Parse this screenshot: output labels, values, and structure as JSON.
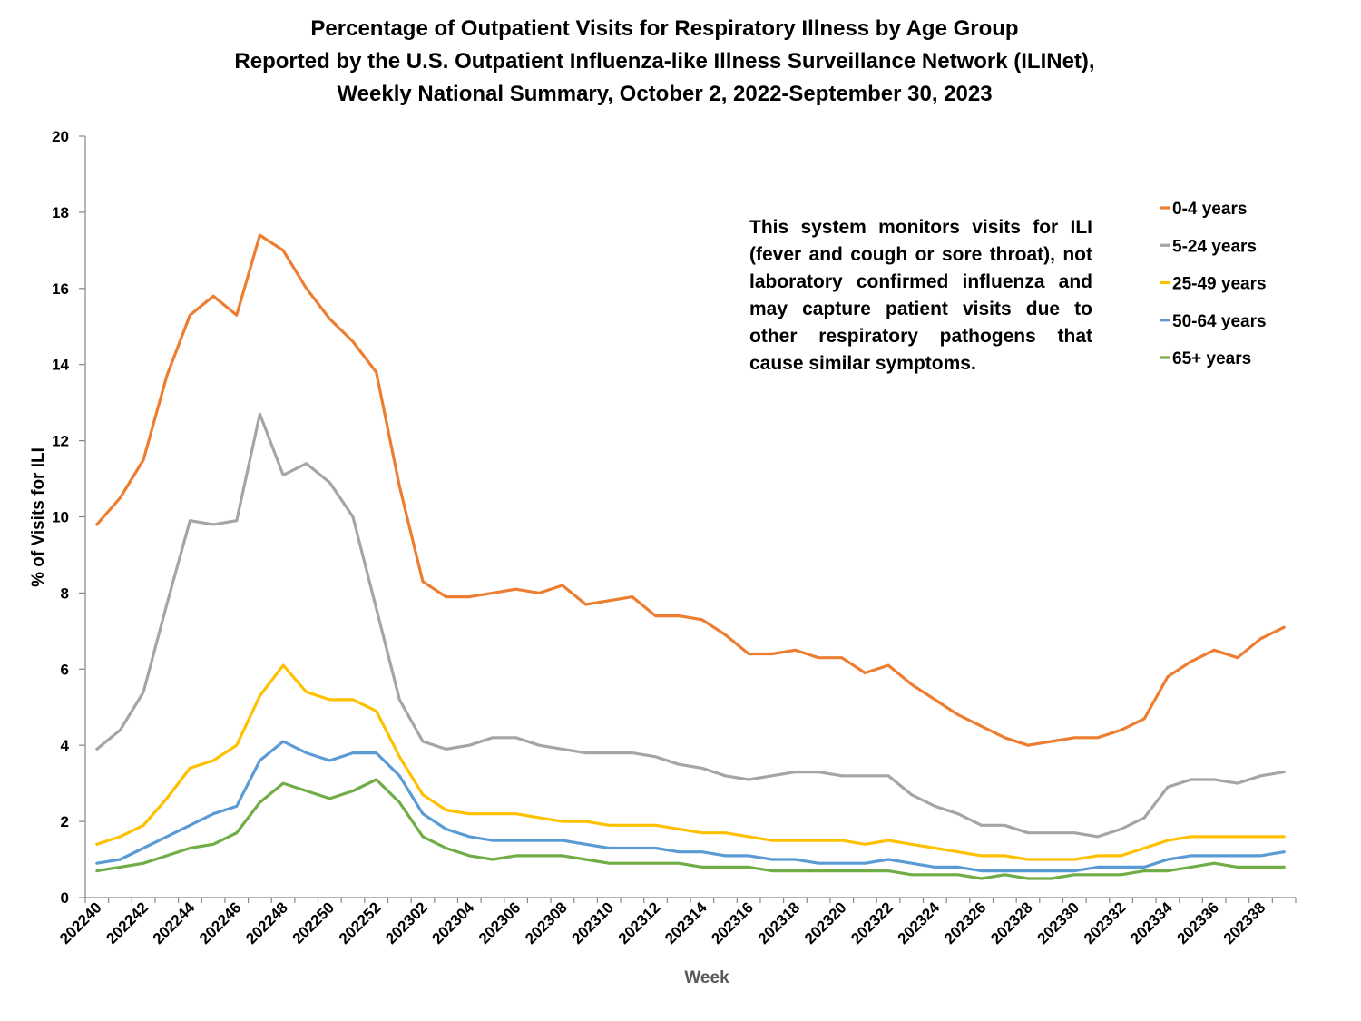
{
  "chart_data": {
    "type": "line",
    "title_lines": [
      "Percentage of Outpatient Visits for Respiratory Illness by Age Group",
      "Reported by the U.S. Outpatient Influenza-like Illness Surveillance Network (ILINet),",
      "Weekly National Summary, October 2, 2022-September 30, 2023"
    ],
    "xlabel": "Week",
    "ylabel": "% of Visits for ILI",
    "ylim": [
      0,
      20
    ],
    "yticks": [
      0,
      2,
      4,
      6,
      8,
      10,
      12,
      14,
      16,
      18,
      20
    ],
    "x": [
      "202240",
      "202241",
      "202242",
      "202243",
      "202244",
      "202245",
      "202246",
      "202247",
      "202248",
      "202249",
      "202250",
      "202251",
      "202252",
      "202301",
      "202302",
      "202303",
      "202304",
      "202305",
      "202306",
      "202307",
      "202308",
      "202309",
      "202310",
      "202311",
      "202312",
      "202313",
      "202314",
      "202315",
      "202316",
      "202317",
      "202318",
      "202319",
      "202320",
      "202321",
      "202322",
      "202323",
      "202324",
      "202325",
      "202326",
      "202327",
      "202328",
      "202329",
      "202330",
      "202331",
      "202332",
      "202333",
      "202334",
      "202335",
      "202336",
      "202337",
      "202338",
      "202339"
    ],
    "xtick_labels": [
      "202240",
      "202242",
      "202244",
      "202246",
      "202248",
      "202250",
      "202252",
      "202302",
      "202304",
      "202306",
      "202308",
      "202310",
      "202312",
      "202314",
      "202316",
      "202318",
      "202320",
      "202322",
      "202324",
      "202326",
      "202328",
      "202330",
      "202332",
      "202334",
      "202336",
      "202338"
    ],
    "annotation": "This system monitors visits for ILI (fever and cough or sore throat), not laboratory confirmed influenza and may capture patient visits due to other respiratory pathogens that cause similar symptoms.",
    "legend_position": "top-right",
    "series": [
      {
        "name": "0-4 years",
        "color": "#ED7D31",
        "values": [
          9.8,
          10.5,
          11.5,
          13.7,
          15.3,
          15.8,
          15.3,
          17.4,
          17.0,
          16.0,
          15.2,
          14.6,
          13.8,
          10.8,
          8.3,
          7.9,
          7.9,
          8.0,
          8.1,
          8.0,
          8.2,
          7.7,
          7.8,
          7.9,
          7.4,
          7.4,
          7.3,
          6.9,
          6.4,
          6.4,
          6.5,
          6.3,
          6.3,
          5.9,
          6.1,
          5.6,
          5.2,
          4.8,
          4.5,
          4.2,
          4.0,
          4.1,
          4.2,
          4.2,
          4.4,
          4.7,
          5.8,
          6.2,
          6.5,
          6.3,
          6.8,
          7.1
        ]
      },
      {
        "name": "5-24 years",
        "color": "#A5A5A5",
        "values": [
          3.9,
          4.4,
          5.4,
          7.7,
          9.9,
          9.8,
          9.9,
          12.7,
          11.1,
          11.4,
          10.9,
          10.0,
          7.6,
          5.2,
          4.1,
          3.9,
          4.0,
          4.2,
          4.2,
          4.0,
          3.9,
          3.8,
          3.8,
          3.8,
          3.7,
          3.5,
          3.4,
          3.2,
          3.1,
          3.2,
          3.3,
          3.3,
          3.2,
          3.2,
          3.2,
          2.7,
          2.4,
          2.2,
          1.9,
          1.9,
          1.7,
          1.7,
          1.7,
          1.6,
          1.8,
          2.1,
          2.9,
          3.1,
          3.1,
          3.0,
          3.2,
          3.3
        ]
      },
      {
        "name": "25-49 years",
        "color": "#FFC000",
        "values": [
          1.4,
          1.6,
          1.9,
          2.6,
          3.4,
          3.6,
          4.0,
          5.3,
          6.1,
          5.4,
          5.2,
          5.2,
          4.9,
          3.7,
          2.7,
          2.3,
          2.2,
          2.2,
          2.2,
          2.1,
          2.0,
          2.0,
          1.9,
          1.9,
          1.9,
          1.8,
          1.7,
          1.7,
          1.6,
          1.5,
          1.5,
          1.5,
          1.5,
          1.4,
          1.5,
          1.4,
          1.3,
          1.2,
          1.1,
          1.1,
          1.0,
          1.0,
          1.0,
          1.1,
          1.1,
          1.3,
          1.5,
          1.6,
          1.6,
          1.6,
          1.6,
          1.6
        ]
      },
      {
        "name": "50-64 years",
        "color": "#5B9BD5",
        "values": [
          0.9,
          1.0,
          1.3,
          1.6,
          1.9,
          2.2,
          2.4,
          3.6,
          4.1,
          3.8,
          3.6,
          3.8,
          3.8,
          3.2,
          2.2,
          1.8,
          1.6,
          1.5,
          1.5,
          1.5,
          1.5,
          1.4,
          1.3,
          1.3,
          1.3,
          1.2,
          1.2,
          1.1,
          1.1,
          1.0,
          1.0,
          0.9,
          0.9,
          0.9,
          1.0,
          0.9,
          0.8,
          0.8,
          0.7,
          0.7,
          0.7,
          0.7,
          0.7,
          0.8,
          0.8,
          0.8,
          1.0,
          1.1,
          1.1,
          1.1,
          1.1,
          1.2
        ]
      },
      {
        "name": "65+ years",
        "color": "#70AD47",
        "values": [
          0.7,
          0.8,
          0.9,
          1.1,
          1.3,
          1.4,
          1.7,
          2.5,
          3.0,
          2.8,
          2.6,
          2.8,
          3.1,
          2.5,
          1.6,
          1.3,
          1.1,
          1.0,
          1.1,
          1.1,
          1.1,
          1.0,
          0.9,
          0.9,
          0.9,
          0.9,
          0.8,
          0.8,
          0.8,
          0.7,
          0.7,
          0.7,
          0.7,
          0.7,
          0.7,
          0.6,
          0.6,
          0.6,
          0.5,
          0.6,
          0.5,
          0.5,
          0.6,
          0.6,
          0.6,
          0.7,
          0.7,
          0.8,
          0.9,
          0.8,
          0.8,
          0.8
        ]
      }
    ]
  }
}
